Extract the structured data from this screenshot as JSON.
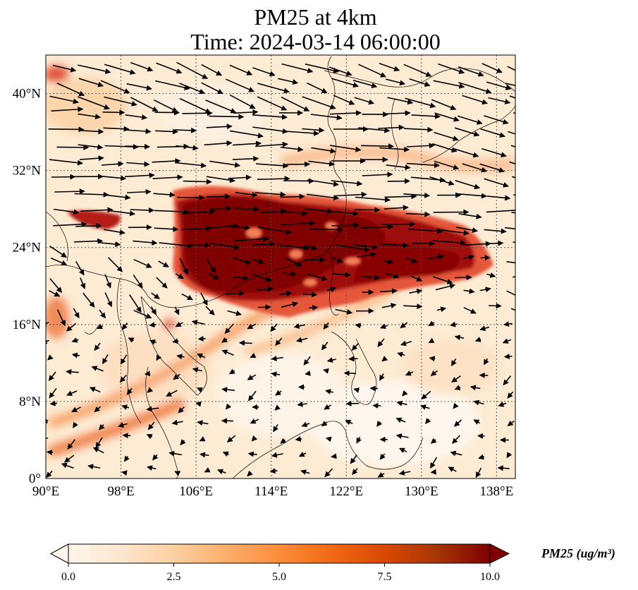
{
  "title": "PM25 at 4km",
  "subtitle": "Time: 2024-03-14 06:00:00",
  "map": {
    "lon_range": [
      90,
      140
    ],
    "lat_range": [
      0,
      44
    ],
    "lon_ticks": [
      {
        "value": 90,
        "label": "90°E"
      },
      {
        "value": 98,
        "label": "98°E"
      },
      {
        "value": 106,
        "label": "106°E"
      },
      {
        "value": 114,
        "label": "114°E"
      },
      {
        "value": 122,
        "label": "122°E"
      },
      {
        "value": 130,
        "label": "130°E"
      },
      {
        "value": 138,
        "label": "138°E"
      }
    ],
    "lat_ticks": [
      {
        "value": 0,
        "label": "0°"
      },
      {
        "value": 8,
        "label": "8°N"
      },
      {
        "value": 16,
        "label": "16°N"
      },
      {
        "value": 24,
        "label": "24°N"
      },
      {
        "value": 32,
        "label": "32°N"
      },
      {
        "value": 40,
        "label": "40°N"
      }
    ],
    "gridlines": true,
    "field": "PM25",
    "level": "4km"
  },
  "colorbar": {
    "label": "PM25 (ug/m³)",
    "min": 0.0,
    "max": 10.0,
    "ticks": [
      "0.0",
      "2.5",
      "5.0",
      "7.5",
      "10.0"
    ],
    "colors": [
      "#fff5eb",
      "#fee6ce",
      "#fdd0a2",
      "#fdae6b",
      "#fd8d3c",
      "#f16913",
      "#d94801",
      "#a63603",
      "#7f0000"
    ],
    "extend": "both"
  }
}
